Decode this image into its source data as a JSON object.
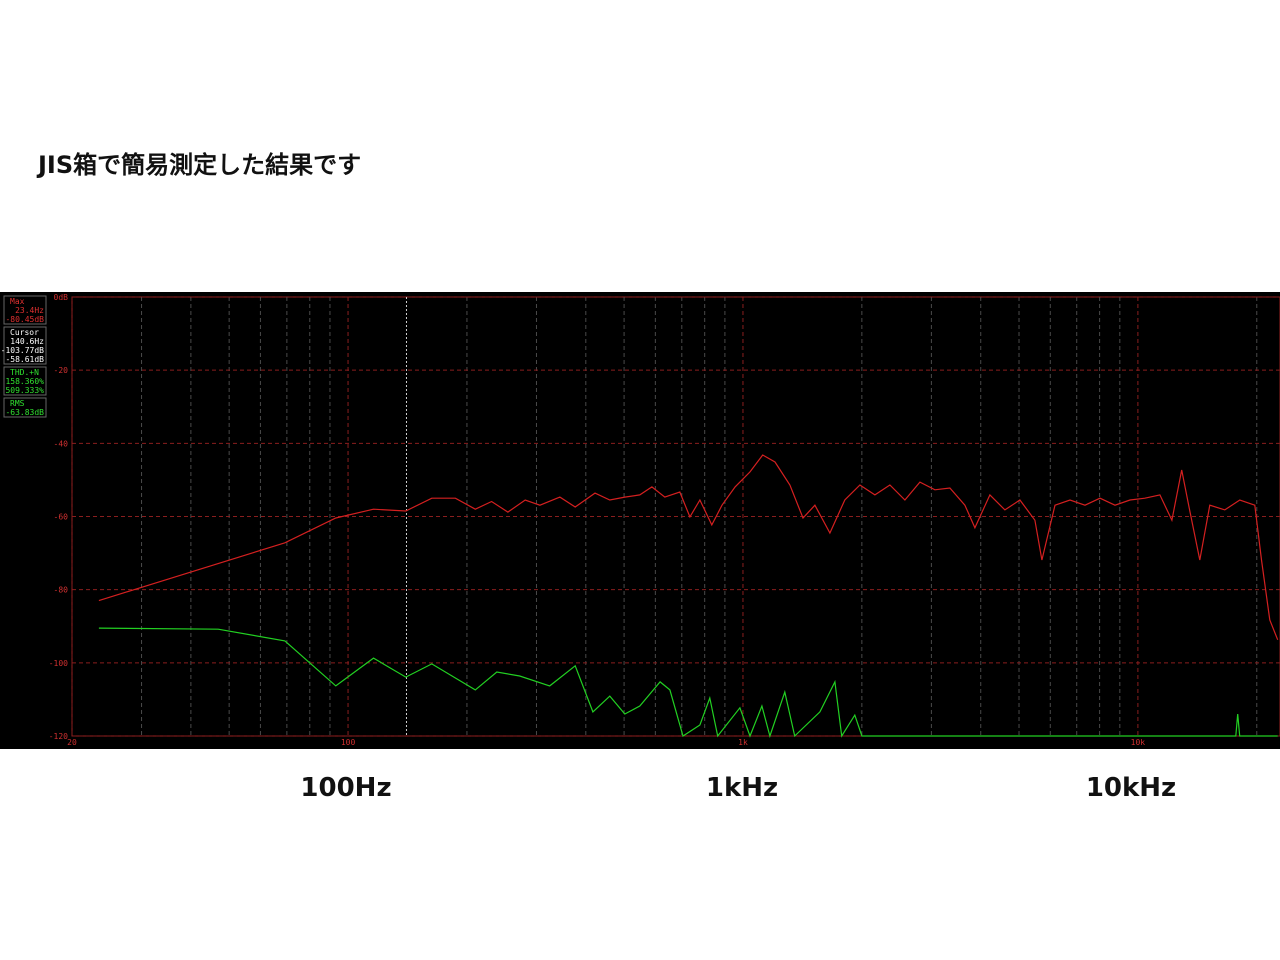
{
  "chart_data": {
    "type": "line",
    "title": "JIS箱で簡易測定した結果です",
    "axis_captions": [
      "100Hz",
      "1kHz",
      "10kHz"
    ],
    "log_x": true,
    "grid": true,
    "xlim": [
      20,
      22900
    ],
    "ylim": [
      -120,
      0
    ],
    "xticks": [
      20,
      100,
      {
        "value": 1000,
        "label": "1k"
      },
      {
        "value": 10000,
        "label": "10k"
      }
    ],
    "xminor": [
      30,
      40,
      50,
      60,
      70,
      80,
      90,
      200,
      300,
      400,
      500,
      600,
      700,
      800,
      900,
      2000,
      3000,
      4000,
      5000,
      6000,
      7000,
      8000,
      9000,
      20000
    ],
    "yticks": [
      {
        "value": 0,
        "label": "0dB"
      },
      -20,
      -40,
      -60,
      -80,
      -100,
      -120
    ],
    "cursor": 140.6,
    "readout": [
      {
        "label": "Max",
        "lines": [
          "23.4Hz",
          "-80.45dB"
        ],
        "color": "#e03030"
      },
      {
        "label": "Cursor",
        "lines": [
          "140.6Hz",
          "-103.77dB",
          "-58.61dB"
        ],
        "color": "#ffffff"
      },
      {
        "label": "THD.+N",
        "lines": [
          "158.360%",
          "509.333%"
        ],
        "color": "#30e030"
      },
      {
        "label": "RMS",
        "lines": [
          "-63.83dB"
        ],
        "color": "#30e030"
      }
    ],
    "series": [
      {
        "color": "#d42020",
        "x": [
          23.4,
          69.2,
          93.1,
          116,
          140,
          163,
          187,
          210,
          231,
          254,
          281,
          306,
          344,
          376,
          422,
          460,
          502,
          548,
          588,
          634,
          692,
          734,
          778,
          834,
          885,
          955,
          1042,
          1122,
          1205,
          1315,
          1419,
          1521,
          1660,
          1811,
          1977,
          2158,
          2355,
          2570,
          2806,
          3062,
          3342,
          3648,
          3866,
          4220,
          4606,
          5027,
          5486,
          5715,
          6166,
          6730,
          7345,
          8017,
          8750,
          9550,
          10420,
          11370,
          12190,
          12910,
          13520,
          14350,
          15210,
          16600,
          18110,
          19770,
          20560,
          21580,
          22600
        ],
        "values": [
          -83,
          -67.2,
          -60.4,
          -58,
          -58.5,
          -55,
          -55,
          -58,
          -55.9,
          -58.8,
          -55.5,
          -56.9,
          -54.7,
          -57.4,
          -53.6,
          -55.5,
          -54.7,
          -54.1,
          -51.9,
          -54.7,
          -53.3,
          -60.1,
          -55.5,
          -62.3,
          -56.9,
          -51.9,
          -47.8,
          -43.2,
          -45.1,
          -51.4,
          -60.4,
          -56.9,
          -64.5,
          -55.5,
          -51.4,
          -54.1,
          -51.4,
          -55.5,
          -50.6,
          -52.7,
          -52.2,
          -56.9,
          -63.1,
          -54.1,
          -58.2,
          -55.5,
          -61,
          -71.9,
          -56.9,
          -55.5,
          -56.9,
          -55,
          -56.9,
          -55.5,
          -55,
          -54.1,
          -61,
          -47.3,
          -58.2,
          -71.9,
          -56.9,
          -58.2,
          -55.5,
          -56.9,
          -71.9,
          -88.3,
          -93.7
        ]
      },
      {
        "color": "#22d022",
        "x": [
          23.4,
          46.9,
          69.2,
          93.1,
          116,
          140,
          163,
          210,
          238,
          272,
          324,
          376,
          417,
          460,
          502,
          548,
          617,
          653,
          705,
          778,
          824,
          863,
          982,
          1042,
          1117,
          1170,
          1276,
          1352,
          1566,
          1709,
          1778,
          1919,
          2000,
          10000,
          17700,
          17900,
          18100,
          22600
        ],
        "values": [
          -90.5,
          -90.8,
          -94,
          -106.3,
          -98.7,
          -103.9,
          -100.3,
          -107.4,
          -102.5,
          -103.6,
          -106.3,
          -100.8,
          -113.4,
          -109.1,
          -114,
          -111.8,
          -105.2,
          -107.4,
          -120,
          -117,
          -109.6,
          -120,
          -112.3,
          -120,
          -111.8,
          -120,
          -108,
          -120,
          -113.4,
          -105.2,
          -120,
          -114.3,
          -120,
          -120,
          -120,
          -114,
          -120,
          -120
        ]
      }
    ]
  }
}
